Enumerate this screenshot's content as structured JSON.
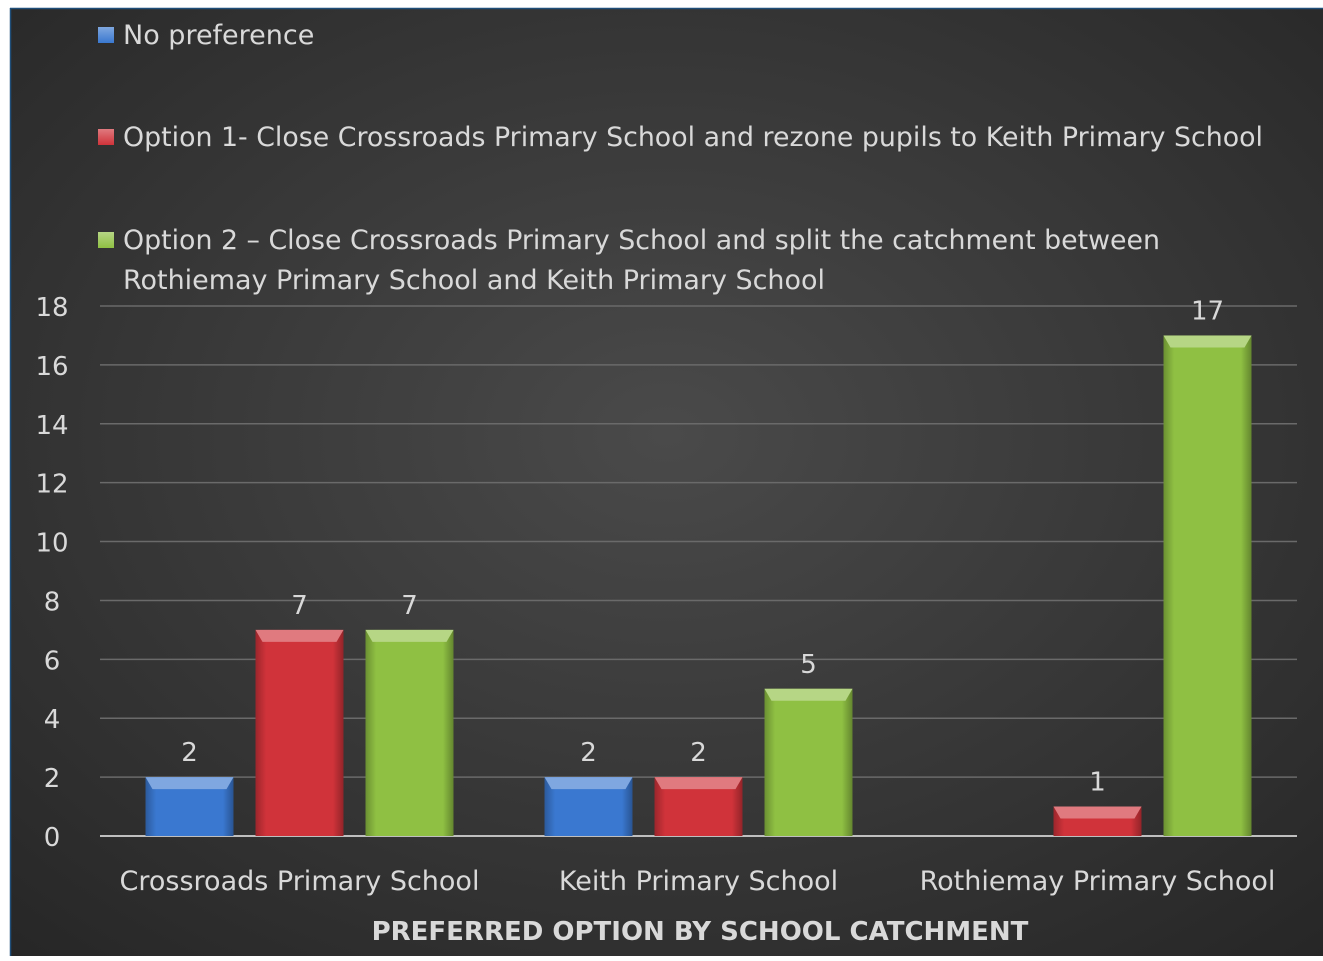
{
  "colors": {
    "background_center": "#4a4a4a",
    "background_edge": "#262626",
    "frame": "#1f4e79",
    "gridline": "#6a6a6a",
    "axis_line": "#bfbfbf",
    "text": "#d9d9d9",
    "blue": "#3a78d0",
    "red": "#d0333a",
    "green": "#8fc043"
  },
  "chart_data": {
    "type": "bar",
    "title": "",
    "xlabel": "PREFERRED OPTION BY SCHOOL CATCHMENT",
    "ylabel": "",
    "ylim": [
      0,
      18
    ],
    "yticks": [
      0,
      2,
      4,
      6,
      8,
      10,
      12,
      14,
      16,
      18
    ],
    "grid": true,
    "legend_position": "top",
    "categories": [
      "Crossroads Primary School",
      "Keith Primary School",
      "Rothiemay Primary School"
    ],
    "series": [
      {
        "name": "No preference",
        "color": "#3a78d0",
        "values": [
          2,
          2,
          null
        ]
      },
      {
        "name": "Option 1- Close Crossroads Primary School and rezone pupils to Keith Primary School",
        "color": "#d0333a",
        "values": [
          7,
          2,
          1
        ]
      },
      {
        "name_lines": [
          "Option 2 – Close Crossroads Primary School and split the catchment between",
          "Rothiemay Primary School and Keith Primary School"
        ],
        "color": "#8fc043",
        "values": [
          7,
          5,
          17
        ]
      }
    ]
  }
}
